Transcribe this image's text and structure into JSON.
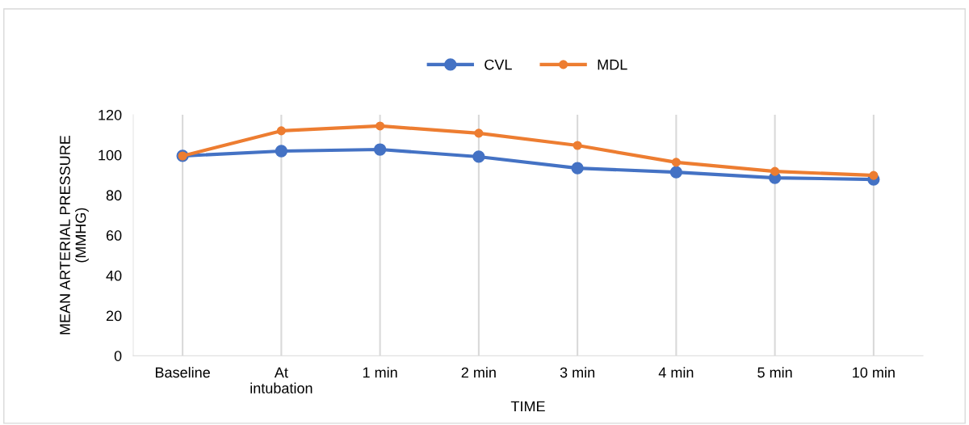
{
  "chart_data": {
    "type": "line",
    "xlabel": "TIME",
    "ylabel": "MEAN ARTERIAL PRESSURE\n(MMHG)",
    "categories": [
      "Baseline",
      "At\nintubation",
      "1 min",
      "2 min",
      "3 min",
      "4 min",
      "5 min",
      "10 min"
    ],
    "series": [
      {
        "name": "CVL",
        "color": "#4472c4",
        "values": [
          99.5,
          101.9,
          102.7,
          99.1,
          93.4,
          91.4,
          88.6,
          87.8
        ]
      },
      {
        "name": "MDL",
        "color": "#ed7d31",
        "values": [
          99.5,
          112,
          114.4,
          110.8,
          104.7,
          96.3,
          91.8,
          89.8
        ]
      }
    ],
    "ylim": [
      0,
      120
    ],
    "yticks": [
      0,
      20,
      40,
      60,
      80,
      100,
      120
    ],
    "grid": "x",
    "legend": "top",
    "marker": "circle",
    "line_style": "solid"
  }
}
